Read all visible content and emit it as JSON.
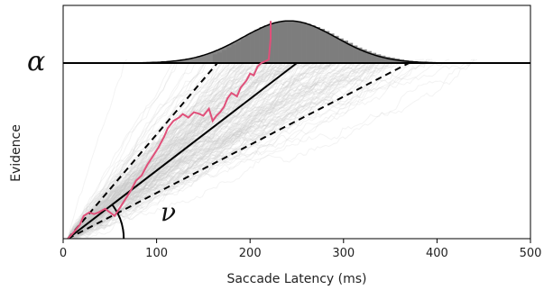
{
  "chart_data": {
    "type": "line",
    "title": "",
    "xlabel": "Saccade Latency (ms)",
    "ylabel": "Evidence",
    "xlim": [
      0,
      500
    ],
    "ylim": [
      0,
      1.25
    ],
    "xticks": [
      "0",
      "100",
      "200",
      "300",
      "400",
      "500"
    ],
    "grid": false,
    "threshold": {
      "label": "α",
      "value": 1.0
    },
    "drift_angle_label": "ν",
    "mean_drift_line": {
      "x": [
        5,
        250
      ],
      "y": [
        0,
        1.0
      ]
    },
    "drift_bound_lines": [
      {
        "x": [
          5,
          165
        ],
        "y": [
          0,
          1.0
        ]
      },
      {
        "x": [
          5,
          370
        ],
        "y": [
          0,
          1.0
        ]
      }
    ],
    "latency_density": {
      "mean_ms": 242,
      "sd_ms": 50,
      "peak_height": 0.24,
      "histogram_bins_ms": [
        160,
        165,
        170,
        175,
        180,
        185,
        190,
        195,
        200,
        205,
        210,
        215,
        220,
        225,
        230,
        235,
        240,
        245,
        250,
        255,
        260,
        265,
        270,
        275,
        280,
        285,
        290,
        295,
        300,
        305,
        310,
        315,
        320,
        325,
        330,
        335,
        340,
        345,
        350,
        355,
        360,
        365,
        370,
        375,
        380,
        385,
        390,
        395,
        400,
        405,
        410,
        415,
        420,
        425,
        430,
        435,
        440
      ],
      "histogram_heights": [
        0.05,
        0.06,
        0.075,
        0.09,
        0.105,
        0.12,
        0.14,
        0.155,
        0.175,
        0.19,
        0.205,
        0.215,
        0.225,
        0.232,
        0.238,
        0.242,
        0.24,
        0.236,
        0.238,
        0.232,
        0.224,
        0.215,
        0.205,
        0.195,
        0.182,
        0.168,
        0.155,
        0.14,
        0.128,
        0.115,
        0.1,
        0.088,
        0.078,
        0.068,
        0.058,
        0.05,
        0.042,
        0.035,
        0.03,
        0.025,
        0.02,
        0.016,
        0.013,
        0.01,
        0.008,
        0.006,
        0.005,
        0.004,
        0.003,
        0.002,
        0.002,
        0.001,
        0.001,
        0.001,
        0.0005,
        0.0005,
        0.0003
      ]
    },
    "example_trace": {
      "color": "#e0507a",
      "x": [
        5,
        12,
        18,
        22,
        28,
        33,
        38,
        45,
        50,
        55,
        60,
        66,
        72,
        78,
        84,
        90,
        96,
        102,
        108,
        112,
        118,
        124,
        128,
        134,
        140,
        146,
        150,
        156,
        160,
        164,
        168,
        172,
        176,
        180,
        186,
        190,
        196,
        200,
        204,
        208,
        212,
        216,
        220,
        222,
        222
      ],
      "y": [
        0.0,
        0.04,
        0.08,
        0.13,
        0.15,
        0.14,
        0.15,
        0.17,
        0.15,
        0.13,
        0.17,
        0.22,
        0.27,
        0.33,
        0.36,
        0.42,
        0.47,
        0.52,
        0.58,
        0.63,
        0.67,
        0.69,
        0.71,
        0.69,
        0.72,
        0.71,
        0.7,
        0.74,
        0.67,
        0.7,
        0.72,
        0.75,
        0.8,
        0.83,
        0.81,
        0.86,
        0.9,
        0.94,
        0.93,
        0.98,
        1.0,
        1.01,
        1.02,
        1.14,
        1.24
      ]
    },
    "background_traces": {
      "count": 180,
      "color": "#c8c8c8"
    }
  }
}
